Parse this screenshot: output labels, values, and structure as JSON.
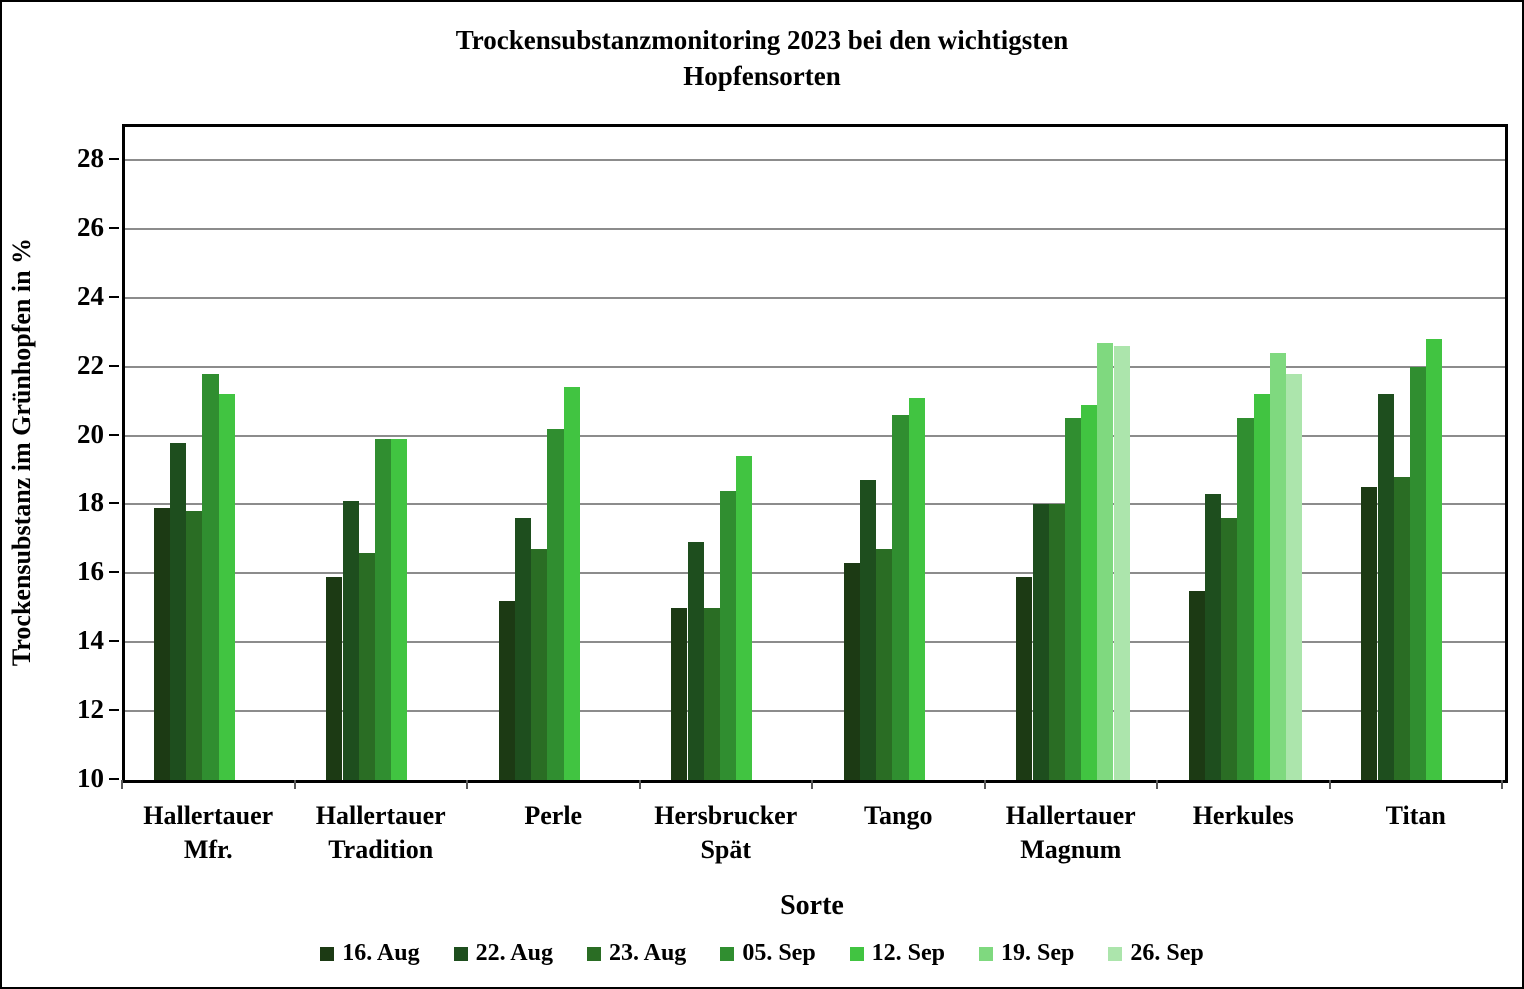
{
  "title_lines": [
    "Trockensubstanzmonitoring  2023 bei den wichtigsten",
    "Hopfensorten"
  ],
  "chart_data": {
    "type": "bar",
    "title": "Trockensubstanzmonitoring 2023 bei den wichtigsten Hopfensorten",
    "xlabel": "Sorte",
    "ylabel": "Trockensubstanz im Grünhopfen in %",
    "ylim": [
      10,
      29
    ],
    "yticks": [
      10,
      12,
      14,
      16,
      18,
      20,
      22,
      24,
      26,
      28
    ],
    "grid": true,
    "legend_position": "bottom",
    "categories": [
      "Hallertauer Mfr.",
      "Hallertauer Tradition",
      "Perle",
      "Hersbrucker Spät",
      "Tango",
      "Hallertauer Magnum",
      "Herkules",
      "Titan"
    ],
    "series": [
      {
        "name": "16. Aug",
        "color": "#1c3a14",
        "values": [
          17.9,
          15.9,
          15.2,
          15.0,
          16.3,
          15.9,
          15.5,
          18.5
        ]
      },
      {
        "name": "22. Aug",
        "color": "#1e4e1e",
        "values": [
          19.8,
          18.1,
          17.6,
          16.9,
          18.7,
          18.0,
          18.3,
          21.2
        ]
      },
      {
        "name": "23. Aug",
        "color": "#2a6d24",
        "values": [
          17.8,
          16.6,
          16.7,
          15.0,
          16.7,
          18.0,
          17.6,
          18.8
        ]
      },
      {
        "name": "05. Sep",
        "color": "#308e30",
        "values": [
          21.8,
          19.9,
          20.2,
          18.4,
          20.6,
          20.5,
          20.5,
          22.0
        ]
      },
      {
        "name": "12. Sep",
        "color": "#41c441",
        "values": [
          21.2,
          19.9,
          21.4,
          19.4,
          21.1,
          20.9,
          21.2,
          22.8
        ]
      },
      {
        "name": "19. Sep",
        "color": "#7fd97f",
        "values": [
          null,
          null,
          null,
          null,
          null,
          22.7,
          22.4,
          null
        ]
      },
      {
        "name": "26. Sep",
        "color": "#ace5ac",
        "values": [
          null,
          null,
          null,
          null,
          null,
          22.6,
          21.8,
          null
        ]
      }
    ]
  }
}
